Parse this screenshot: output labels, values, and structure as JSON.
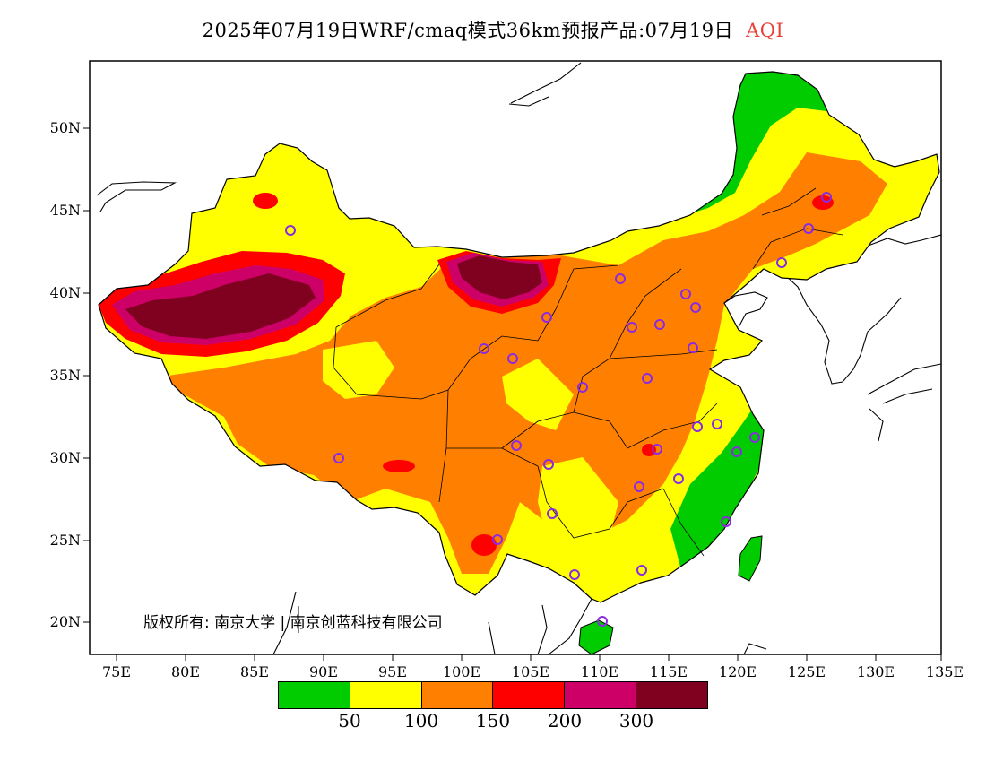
{
  "title": {
    "main": "2025年07月19日WRF/cmaq模式36km预报产品:07月19日",
    "product": "AQI"
  },
  "map": {
    "lat_labels": [
      "50N",
      "45N",
      "40N",
      "35N",
      "30N",
      "25N",
      "20N"
    ],
    "lon_labels": [
      "75E",
      "80E",
      "85E",
      "90E",
      "95E",
      "100E",
      "105E",
      "110E",
      "115E",
      "120E",
      "125E",
      "130E",
      "135E"
    ],
    "ocean_color": "#ffffff",
    "land_outline_color": "#000000",
    "station_marker_color": "#8a2be2"
  },
  "copyright": "版权所有: 南京大学 | 南京创蓝科技有限公司",
  "legend": {
    "colors": [
      "#00cc00",
      "#ffff00",
      "#ff8000",
      "#ff0000",
      "#cc0066",
      "#800020"
    ],
    "tick_labels": [
      "50",
      "100",
      "150",
      "200",
      "300"
    ]
  }
}
